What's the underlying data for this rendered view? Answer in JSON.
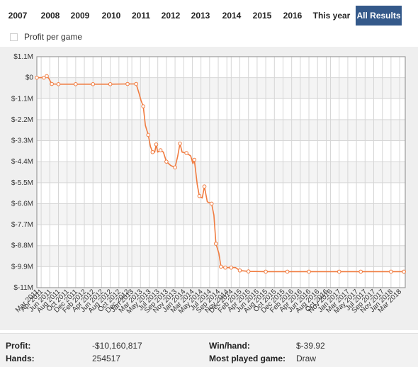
{
  "tabs": [
    {
      "label": "2007",
      "active": false
    },
    {
      "label": "2008",
      "active": false
    },
    {
      "label": "2009",
      "active": false
    },
    {
      "label": "2010",
      "active": false
    },
    {
      "label": "2011",
      "active": false
    },
    {
      "label": "2012",
      "active": false
    },
    {
      "label": "2013",
      "active": false
    },
    {
      "label": "2014",
      "active": false
    },
    {
      "label": "2015",
      "active": false
    },
    {
      "label": "2016",
      "active": false
    },
    {
      "label": "This year",
      "active": false
    },
    {
      "label": "All Results",
      "active": true
    }
  ],
  "profit_per_game": {
    "label": "Profit per game",
    "checked": false
  },
  "colors": {
    "accent": "#34598a",
    "line": "#f07b3f",
    "band": "#f4f4f4",
    "grid": "#d6d6d6"
  },
  "chart_data": {
    "type": "line",
    "title": "",
    "xlabel": "",
    "ylabel": "",
    "grid": true,
    "ylim": [
      -11000000,
      1100000
    ],
    "y_ticks": [
      {
        "value": 1100000,
        "label": "$1.1M"
      },
      {
        "value": 0,
        "label": "$0"
      },
      {
        "value": -1100000,
        "label": "$-1.1M"
      },
      {
        "value": -2200000,
        "label": "$-2.2M"
      },
      {
        "value": -3300000,
        "label": "$-3.3M"
      },
      {
        "value": -4400000,
        "label": "$-4.4M"
      },
      {
        "value": -5500000,
        "label": "$-5.5M"
      },
      {
        "value": -6600000,
        "label": "$-6.6M"
      },
      {
        "value": -7700000,
        "label": "$-7.7M"
      },
      {
        "value": -8800000,
        "label": "$-8.8M"
      },
      {
        "value": -9900000,
        "label": "$-9.9M"
      },
      {
        "value": -11000000,
        "label": "$-11M"
      }
    ],
    "x_ticks": [
      "Mar 2011",
      "Apr 2011",
      "Jun 2011",
      "Aug 2011",
      "Oct 2011",
      "Dec 2011",
      "Feb 2012",
      "Apr 2012",
      "Jun 2012",
      "Aug 2012",
      "Oct 2012",
      "Dec 2012",
      "Jan 2013",
      "Mar 2013",
      "May 2013",
      "Jul 2013",
      "Sep 2013",
      "Nov 2013",
      "Jan 2014",
      "Mar 2014",
      "May 2014",
      "Jul 2014",
      "Sep 2014",
      "Nov 2014",
      "Dec 2014",
      "Feb 2015",
      "Apr 2015",
      "Jun 2015",
      "Aug 2015",
      "Oct 2015",
      "Dec 2015",
      "Feb 2016",
      "Apr 2016",
      "Jun 2016",
      "Aug 2016",
      "Oct 2016",
      "Nov 2016",
      "Jan 2017",
      "Mar 2017",
      "May 2017",
      "Jul 2017",
      "Sep 2017",
      "Nov 2017",
      "Jan 2018",
      "Mar 2018"
    ],
    "series": [
      {
        "points": [
          {
            "x": "2011-03-01",
            "y": 0
          },
          {
            "x": "2011-04-20",
            "y": 0
          },
          {
            "x": "2011-05-10",
            "y": 80000
          },
          {
            "x": "2011-05-25",
            "y": -50000
          },
          {
            "x": "2011-06-15",
            "y": -330000
          },
          {
            "x": "2011-08-01",
            "y": -340000
          },
          {
            "x": "2011-12-01",
            "y": -340000
          },
          {
            "x": "2012-04-01",
            "y": -340000
          },
          {
            "x": "2012-08-01",
            "y": -340000
          },
          {
            "x": "2012-12-01",
            "y": -330000
          },
          {
            "x": "2013-02-01",
            "y": -330000
          },
          {
            "x": "2013-02-20",
            "y": -800000
          },
          {
            "x": "2013-03-05",
            "y": -1200000
          },
          {
            "x": "2013-03-20",
            "y": -1500000
          },
          {
            "x": "2013-04-05",
            "y": -2500000
          },
          {
            "x": "2013-04-25",
            "y": -3000000
          },
          {
            "x": "2013-05-10",
            "y": -3600000
          },
          {
            "x": "2013-05-25",
            "y": -3900000
          },
          {
            "x": "2013-06-10",
            "y": -3900000
          },
          {
            "x": "2013-06-20",
            "y": -3500000
          },
          {
            "x": "2013-06-30",
            "y": -3900000
          },
          {
            "x": "2013-07-20",
            "y": -3800000
          },
          {
            "x": "2013-08-10",
            "y": -3900000
          },
          {
            "x": "2013-09-01",
            "y": -4400000
          },
          {
            "x": "2013-10-01",
            "y": -4600000
          },
          {
            "x": "2013-11-01",
            "y": -4700000
          },
          {
            "x": "2013-11-20",
            "y": -4100000
          },
          {
            "x": "2013-12-05",
            "y": -3450000
          },
          {
            "x": "2013-12-20",
            "y": -3900000
          },
          {
            "x": "2014-01-20",
            "y": -3950000
          },
          {
            "x": "2014-02-20",
            "y": -4100000
          },
          {
            "x": "2014-03-05",
            "y": -4500000
          },
          {
            "x": "2014-03-15",
            "y": -4300000
          },
          {
            "x": "2014-04-05",
            "y": -5600000
          },
          {
            "x": "2014-04-20",
            "y": -6200000
          },
          {
            "x": "2014-05-10",
            "y": -6300000
          },
          {
            "x": "2014-05-25",
            "y": -5700000
          },
          {
            "x": "2014-06-15",
            "y": -6500000
          },
          {
            "x": "2014-07-15",
            "y": -6600000
          },
          {
            "x": "2014-08-01",
            "y": -7200000
          },
          {
            "x": "2014-08-15",
            "y": -8700000
          },
          {
            "x": "2014-09-05",
            "y": -9200000
          },
          {
            "x": "2014-09-20",
            "y": -9900000
          },
          {
            "x": "2014-10-20",
            "y": -9950000
          },
          {
            "x": "2014-12-01",
            "y": -9950000
          },
          {
            "x": "2015-01-01",
            "y": -9950000
          },
          {
            "x": "2015-02-01",
            "y": -10100000
          },
          {
            "x": "2015-04-01",
            "y": -10150000
          },
          {
            "x": "2015-08-01",
            "y": -10160000
          },
          {
            "x": "2016-01-01",
            "y": -10160000
          },
          {
            "x": "2016-06-01",
            "y": -10160000
          },
          {
            "x": "2017-01-01",
            "y": -10160000
          },
          {
            "x": "2017-06-01",
            "y": -10160000
          },
          {
            "x": "2018-01-01",
            "y": -10160000
          },
          {
            "x": "2018-04-01",
            "y": -10160817
          }
        ],
        "markers": [
          "2011-03-01",
          "2011-04-20",
          "2011-05-10",
          "2011-06-15",
          "2011-08-01",
          "2011-12-01",
          "2012-04-01",
          "2012-08-01",
          "2012-12-01",
          "2013-02-01",
          "2013-03-20",
          "2013-04-25",
          "2013-05-25",
          "2013-06-20",
          "2013-07-20",
          "2013-09-01",
          "2013-11-01",
          "2013-12-05",
          "2014-01-20",
          "2014-03-15",
          "2014-04-20",
          "2014-05-25",
          "2014-07-15",
          "2014-08-15",
          "2014-09-20",
          "2014-10-20",
          "2014-12-01",
          "2015-02-01",
          "2015-04-01",
          "2015-08-01",
          "2016-01-01",
          "2016-06-01",
          "2017-01-01",
          "2017-06-01",
          "2018-01-01",
          "2018-04-01"
        ]
      }
    ]
  },
  "summary": {
    "profit_label": "Profit:",
    "profit_value": "-$10,160,817",
    "hands_label": "Hands:",
    "hands_value": "254517",
    "win_label": "Win/hand:",
    "win_value": "$-39.92",
    "game_label": "Most played game:",
    "game_value": "Draw"
  }
}
